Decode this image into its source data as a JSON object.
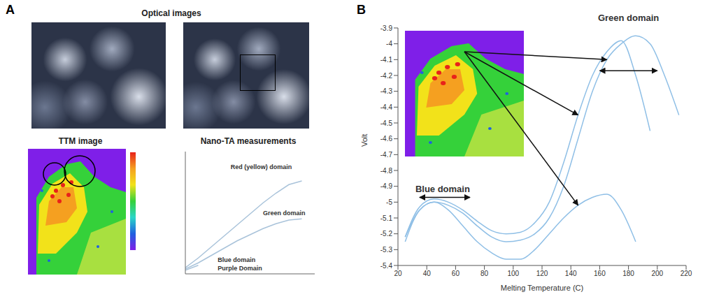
{
  "panel_labels": [
    "A",
    "B"
  ],
  "panel_a": {
    "optical_title": "Optical images",
    "ttm_title": "TTM image"
  },
  "chart_data": [
    {
      "type": "line",
      "title": "Nano-TA measurements",
      "x": [
        0,
        1,
        2,
        3,
        4,
        5,
        6,
        7,
        8,
        9
      ],
      "xlim": [
        0,
        10
      ],
      "ylim": [
        0,
        10
      ],
      "tick_labels": false,
      "series": [
        {
          "color": "#a9c3da",
          "values": [
            0.5,
            1.3,
            2.2,
            3.1,
            4.0,
            4.9,
            5.8,
            6.6,
            7.3,
            7.6
          ]
        },
        {
          "color": "#a9c3da",
          "values": [
            0.4,
            0.9,
            1.5,
            2.1,
            2.7,
            3.2,
            3.7,
            4.1,
            4.4,
            4.5
          ]
        },
        {
          "color": "#a9c3da",
          "values": [
            0.3,
            0.7,
            null,
            null,
            null,
            null,
            null,
            null,
            null,
            null
          ]
        }
      ],
      "annotations": [
        {
          "text": "Red (yellow) domain",
          "x": 3.5,
          "y": 8.6
        },
        {
          "text": "Green domain",
          "x": 6.0,
          "y": 4.8
        },
        {
          "text": "Blue domain",
          "x": 2.5,
          "y": 1.0
        },
        {
          "text": "Purple Domain",
          "x": 2.5,
          "y": 0.3
        }
      ]
    },
    {
      "type": "line",
      "x": [
        25,
        35,
        45,
        55,
        65,
        75,
        85,
        95,
        105,
        115,
        125,
        135,
        145,
        155,
        165,
        175,
        185,
        195,
        205,
        215
      ],
      "xlim": [
        20,
        220
      ],
      "xticks": [
        20,
        40,
        60,
        80,
        100,
        120,
        140,
        160,
        180,
        200,
        220
      ],
      "ylim": [
        -5.4,
        -3.9
      ],
      "yticks": [
        -5.4,
        -5.3,
        -5.2,
        -5.1,
        -5,
        -4.9,
        -4.8,
        -4.7,
        -4.6,
        -4.5,
        -4.4,
        -4.3,
        -4.2,
        -4.1,
        -4,
        -3.9
      ],
      "x_label": "Melting Temperature (C)",
      "y_label": "Volt",
      "series": [
        {
          "color": "#8fbfe6",
          "values": [
            -5.22,
            -5.05,
            -5.0,
            -5.02,
            -5.07,
            -5.15,
            -5.22,
            -5.25,
            -5.24,
            -5.2,
            -5.1,
            -4.9,
            -4.6,
            -4.3,
            -4.1,
            -4.0,
            -3.95,
            -4.0,
            -4.2,
            -4.45
          ]
        },
        {
          "color": "#8fbfe6",
          "values": [
            -5.22,
            -5.03,
            -4.98,
            -5.0,
            -5.05,
            -5.12,
            -5.18,
            -5.2,
            -5.19,
            -5.13,
            -5.0,
            -4.75,
            -4.45,
            -4.2,
            -4.05,
            -3.98,
            -4.2,
            -4.55,
            null,
            null
          ]
        },
        {
          "color": "#8fbfe6",
          "values": [
            -5.25,
            -5.05,
            -5.0,
            -5.05,
            -5.15,
            -5.25,
            -5.32,
            -5.36,
            -5.36,
            -5.3,
            -5.2,
            -5.1,
            -5.02,
            -4.97,
            -4.95,
            -5.05,
            -5.25,
            null,
            null,
            null
          ]
        }
      ],
      "annotations": [
        {
          "text": "Blue domain",
          "x": [
            35,
            70
          ],
          "y": -4.97
        },
        {
          "text": "Green domain",
          "x": [
            160,
            200
          ],
          "y": -4.17
        }
      ]
    }
  ]
}
